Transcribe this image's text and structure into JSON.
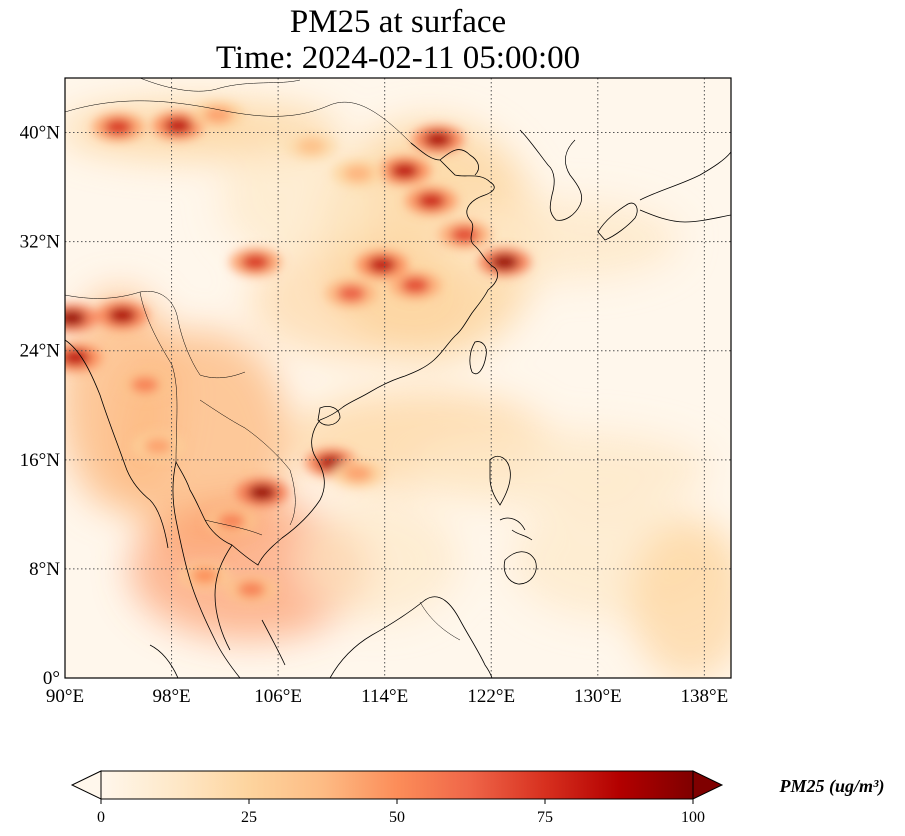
{
  "title": {
    "line1": "PM25 at surface",
    "line2": "Time: 2024-02-11 05:00:00"
  },
  "map": {
    "lon_range": [
      90,
      140
    ],
    "lat_range": [
      0,
      44
    ],
    "projection": "PlateCarree",
    "grid": "dotted",
    "x_ticks": [
      {
        "value": 90,
        "label": "90°E"
      },
      {
        "value": 98,
        "label": "98°E"
      },
      {
        "value": 106,
        "label": "106°E"
      },
      {
        "value": 114,
        "label": "114°E"
      },
      {
        "value": 122,
        "label": "122°E"
      },
      {
        "value": 130,
        "label": "130°E"
      },
      {
        "value": 138,
        "label": "138°E"
      }
    ],
    "y_ticks": [
      {
        "value": 0,
        "label": "0°"
      },
      {
        "value": 8,
        "label": "8°N"
      },
      {
        "value": 16,
        "label": "16°N"
      },
      {
        "value": 24,
        "label": "24°N"
      },
      {
        "value": 32,
        "label": "32°N"
      },
      {
        "value": 40,
        "label": "40°N"
      }
    ]
  },
  "colorbar": {
    "cmap": "OrRd",
    "vmin": 0,
    "vmax": 100,
    "extend": "both",
    "colors": [
      "#fff7ec",
      "#fee8c8",
      "#fdd49e",
      "#fdbb84",
      "#fc8d59",
      "#ef6548",
      "#d7301f",
      "#b30000",
      "#7f0000"
    ],
    "ticks": [
      {
        "value": 0,
        "label": "0"
      },
      {
        "value": 25,
        "label": "25"
      },
      {
        "value": 50,
        "label": "50"
      },
      {
        "value": 75,
        "label": "75"
      },
      {
        "value": 100,
        "label": "100"
      }
    ],
    "label": "PM25 (ug/m³)"
  },
  "hotspots": [
    {
      "lon": 98.5,
      "lat": 40.5,
      "value": 85
    },
    {
      "lon": 94.0,
      "lat": 40.4,
      "value": 75
    },
    {
      "lon": 101.5,
      "lat": 41.3,
      "value": 45
    },
    {
      "lon": 118.0,
      "lat": 39.5,
      "value": 90
    },
    {
      "lon": 115.5,
      "lat": 37.2,
      "value": 85
    },
    {
      "lon": 117.5,
      "lat": 35.0,
      "value": 80
    },
    {
      "lon": 120.0,
      "lat": 32.5,
      "value": 70
    },
    {
      "lon": 123.0,
      "lat": 30.5,
      "value": 95
    },
    {
      "lon": 104.3,
      "lat": 30.5,
      "value": 75
    },
    {
      "lon": 113.8,
      "lat": 30.3,
      "value": 85
    },
    {
      "lon": 116.3,
      "lat": 28.8,
      "value": 70
    },
    {
      "lon": 111.5,
      "lat": 28.2,
      "value": 65
    },
    {
      "lon": 90.5,
      "lat": 26.4,
      "value": 95
    },
    {
      "lon": 94.3,
      "lat": 26.6,
      "value": 90
    },
    {
      "lon": 90.8,
      "lat": 23.5,
      "value": 85
    },
    {
      "lon": 96.0,
      "lat": 21.5,
      "value": 55
    },
    {
      "lon": 110.0,
      "lat": 15.8,
      "value": 90
    },
    {
      "lon": 104.8,
      "lat": 13.6,
      "value": 95
    },
    {
      "lon": 102.5,
      "lat": 11.5,
      "value": 55
    },
    {
      "lon": 104.0,
      "lat": 6.5,
      "value": 55
    },
    {
      "lon": 100.5,
      "lat": 7.5,
      "value": 50
    },
    {
      "lon": 112.0,
      "lat": 15.0,
      "value": 45
    },
    {
      "lon": 97.0,
      "lat": 17.0,
      "value": 45
    },
    {
      "lon": 112.0,
      "lat": 37.0,
      "value": 40
    },
    {
      "lon": 108.5,
      "lat": 39.0,
      "value": 35
    }
  ]
}
